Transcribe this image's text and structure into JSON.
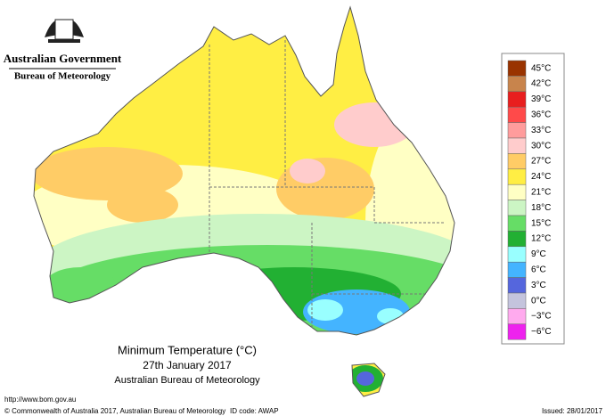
{
  "header": {
    "government": "Australian Government",
    "bureau": "Bureau of Meteorology"
  },
  "legend": [
    {
      "label": "45°C",
      "color": "#993300"
    },
    {
      "label": "42°C",
      "color": "#c8844c"
    },
    {
      "label": "39°C",
      "color": "#e81e1e"
    },
    {
      "label": "36°C",
      "color": "#ff4a4a"
    },
    {
      "label": "33°C",
      "color": "#ff9c9c"
    },
    {
      "label": "30°C",
      "color": "#ffcccc"
    },
    {
      "label": "27°C",
      "color": "#ffcc66"
    },
    {
      "label": "24°C",
      "color": "#ffee44"
    },
    {
      "label": "21°C",
      "color": "#ffffc4"
    },
    {
      "label": "18°C",
      "color": "#ccf5c4"
    },
    {
      "label": "15°C",
      "color": "#66dd66"
    },
    {
      "label": "12°C",
      "color": "#22b033"
    },
    {
      "label": "9°C",
      "color": "#99ffff"
    },
    {
      "label": "6°C",
      "color": "#44b4ff"
    },
    {
      "label": "3°C",
      "color": "#5566dd"
    },
    {
      "label": "0°C",
      "color": "#c4c4dd"
    },
    {
      "label": "−3°C",
      "color": "#ffaaee"
    },
    {
      "label": "−6°C",
      "color": "#ee22ee"
    }
  ],
  "caption": {
    "title": "Minimum Temperature (°C)",
    "date": "27th January 2017",
    "source": "Australian Bureau of Meteorology"
  },
  "footer": {
    "url": "http://www.bom.gov.au",
    "copyright": "© Commonwealth of Australia 2017, Australian Bureau of Meteorology",
    "id_code": "ID code: AWAP",
    "issued": "Issued: 28/01/2017"
  }
}
